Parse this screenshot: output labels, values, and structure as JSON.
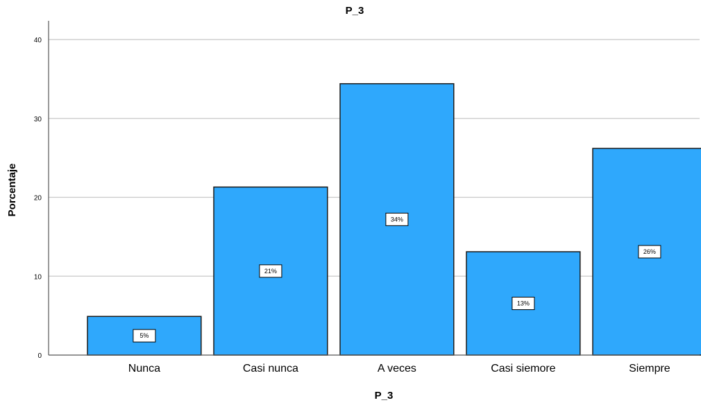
{
  "chart_data": {
    "type": "bar",
    "title": "P_3",
    "xlabel": "P_3",
    "ylabel": "Porcentaje",
    "categories": [
      "Nunca",
      "Casi nunca",
      "A veces",
      "Casi siemore",
      "Siempre"
    ],
    "values": [
      4.9,
      21.3,
      34.4,
      13.1,
      26.2
    ],
    "data_labels": [
      "5%",
      "21%",
      "34%",
      "13%",
      "26%"
    ],
    "ylim": [
      0,
      40
    ],
    "yticks": [
      "0",
      "10",
      "20",
      "30",
      "40"
    ],
    "grid": "horizontal",
    "colors": {
      "bar_fill": "#2fa8fc",
      "bar_stroke": "#1a1a1a",
      "grid": "#c8c8c8",
      "axis": "#555555"
    }
  }
}
